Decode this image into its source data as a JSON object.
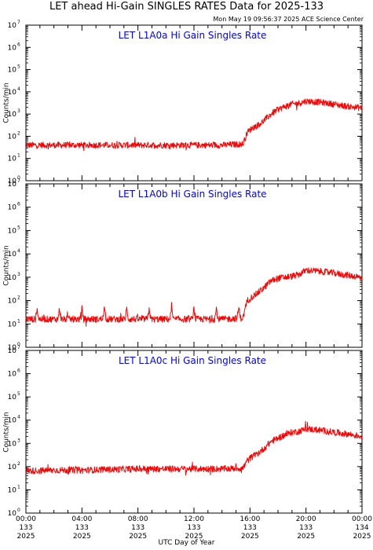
{
  "title": "LET ahead Hi-Gain SINGLES RATES Data for 2025-133",
  "timestamp": "Mon May 19 09:56:37 2025 ACE Science Center",
  "x_axis_title": "UTC Day of Year",
  "colors": {
    "trace": "#ff0000",
    "panel_label": "#0000ff",
    "axes": "#000000"
  },
  "chart_data": [
    {
      "type": "line",
      "label": "LET L1A0a Hi Gain Singles Rate",
      "ylabel": "Counts/min",
      "yscale": "log",
      "ylim_exp": [
        0,
        7
      ],
      "xlim_hours": [
        0,
        24
      ],
      "y_ticks": [
        "10",
        "10",
        "10",
        "10",
        "10",
        "10",
        "10",
        "10"
      ],
      "y_tick_exp": [
        "0",
        "1",
        "2",
        "3",
        "4",
        "5",
        "6",
        "7"
      ],
      "series": [
        {
          "hours": [
            0,
            2,
            4,
            6,
            8,
            10,
            12,
            14,
            15.5,
            15.8,
            16.2,
            16.5,
            17,
            17.5,
            18,
            18.5,
            19,
            19.5,
            20,
            21,
            22,
            23,
            24
          ],
          "values": [
            40,
            40,
            40,
            40,
            40,
            40,
            40,
            40,
            45,
            150,
            250,
            300,
            500,
            1000,
            1600,
            2200,
            2800,
            3100,
            3800,
            3400,
            2800,
            2200,
            1900
          ],
          "spikes": []
        }
      ]
    },
    {
      "type": "line",
      "label": "LET L1A0b Hi Gain Singles Rate",
      "ylabel": "Counts/min",
      "yscale": "log",
      "ylim_exp": [
        0,
        7
      ],
      "xlim_hours": [
        0,
        24
      ],
      "y_ticks": [
        "10",
        "10",
        "10",
        "10",
        "10",
        "10",
        "10",
        "10"
      ],
      "y_tick_exp": [
        "0",
        "1",
        "2",
        "3",
        "4",
        "5",
        "6",
        "7"
      ],
      "series": [
        {
          "hours": [
            0,
            2,
            4,
            6,
            8,
            10,
            12,
            14,
            15.5,
            15.8,
            16.2,
            16.5,
            17,
            17.5,
            18,
            18.5,
            19,
            19.5,
            20,
            21,
            22,
            23,
            24
          ],
          "values": [
            16,
            16,
            16,
            16,
            16,
            16,
            16,
            16,
            18,
            100,
            150,
            200,
            350,
            700,
            900,
            1000,
            1100,
            1300,
            2000,
            1800,
            1500,
            1200,
            1000
          ],
          "spikes": [
            0.8,
            2.4,
            4.0,
            5.6,
            7.2,
            8.8,
            10.4,
            12.0,
            13.6,
            15.2
          ]
        }
      ]
    },
    {
      "type": "line",
      "label": "LET L1A0c Hi Gain Singles Rate",
      "ylabel": "Counts/min",
      "yscale": "log",
      "ylim_exp": [
        0,
        7
      ],
      "xlim_hours": [
        0,
        24
      ],
      "y_ticks": [
        "10",
        "10",
        "10",
        "10",
        "10",
        "10",
        "10",
        "10"
      ],
      "y_tick_exp": [
        "0",
        "1",
        "2",
        "3",
        "4",
        "5",
        "6",
        "7"
      ],
      "series": [
        {
          "hours": [
            0,
            2,
            4,
            6,
            8,
            10,
            12,
            14,
            15.5,
            15.8,
            16.2,
            16.5,
            17,
            17.5,
            18,
            18.5,
            19,
            19.5,
            20,
            21,
            22,
            23,
            24
          ],
          "values": [
            65,
            70,
            70,
            75,
            80,
            80,
            80,
            80,
            85,
            180,
            280,
            350,
            600,
            1200,
            1700,
            2300,
            3000,
            3300,
            4200,
            3700,
            3000,
            2500,
            2000
          ],
          "spikes": []
        }
      ]
    }
  ],
  "x_ticks": [
    {
      "hours": 0,
      "time": "00:00",
      "doy": "133",
      "year": "2025"
    },
    {
      "hours": 4,
      "time": "04:00",
      "doy": "133",
      "year": "2025"
    },
    {
      "hours": 8,
      "time": "08:00",
      "doy": "133",
      "year": "2025"
    },
    {
      "hours": 12,
      "time": "12:00",
      "doy": "133",
      "year": "2025"
    },
    {
      "hours": 16,
      "time": "16:00",
      "doy": "133",
      "year": "2025"
    },
    {
      "hours": 20,
      "time": "20:00",
      "doy": "133",
      "year": "2025"
    },
    {
      "hours": 24,
      "time": "00:00",
      "doy": "134",
      "year": "2025"
    }
  ]
}
